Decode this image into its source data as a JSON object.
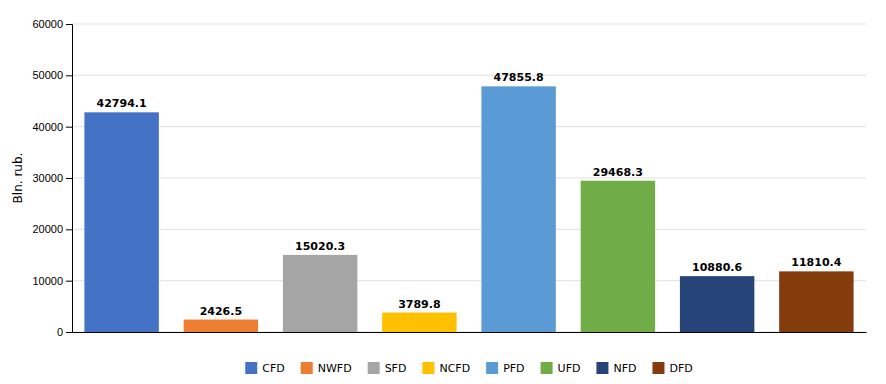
{
  "chart_data": {
    "type": "bar",
    "categories": [
      "CFD",
      "NWFD",
      "SFD",
      "NCFD",
      "PFD",
      "UFD",
      "NFD",
      "DFD"
    ],
    "values": [
      42794.1,
      2426.5,
      15020.3,
      3789.8,
      47855.8,
      29468.3,
      10880.6,
      11810.4
    ],
    "colors": [
      "#4472C4",
      "#ED7D31",
      "#A5A5A5",
      "#FFC000",
      "#5B9BD5",
      "#70AD47",
      "#264478",
      "#843C0C"
    ],
    "ylabel": "Bln. rub.",
    "ylim": [
      0,
      60000
    ],
    "yticks": [
      0,
      10000,
      20000,
      30000,
      40000,
      50000,
      60000
    ],
    "grid": true,
    "legend": "bottom",
    "data_labels": true,
    "tick_labels": "y"
  }
}
